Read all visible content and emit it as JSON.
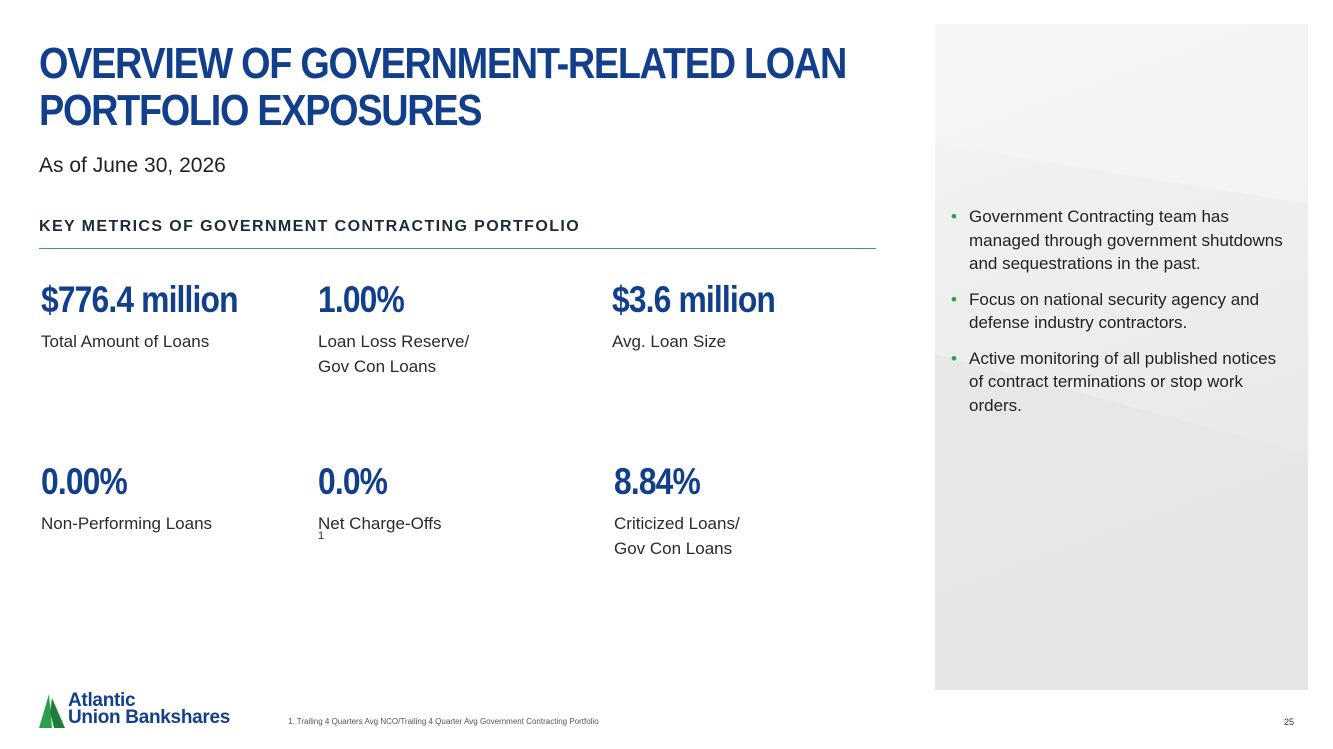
{
  "title": {
    "line1": "OVERVIEW OF GOVERNMENT-RELATED LOAN",
    "line2": "PORTFOLIO EXPOSURES"
  },
  "subtitle": "As of June 30, 2026",
  "section_heading": "KEY METRICS OF GOVERNMENT CONTRACTING PORTFOLIO",
  "metrics": [
    {
      "value": "$776.4 million",
      "label_line1": "Total Amount of Loans",
      "label_line2": ""
    },
    {
      "value": "1.00%",
      "label_line1": "Loan Loss Reserve/",
      "label_line2": "Gov Con Loans"
    },
    {
      "value": "$3.6 million",
      "label_line1": "Avg. Loan Size",
      "label_line2": ""
    },
    {
      "value": "0.00%",
      "label_line1": "Non-Performing Loans",
      "label_line2": ""
    },
    {
      "value": "0.0%",
      "label_line1": "Net Charge-Offs",
      "label_line2": "",
      "footnote_marker": "1"
    },
    {
      "value": "8.84%",
      "label_line1": "Criticized Loans/",
      "label_line2": "Gov Con Loans"
    }
  ],
  "bullets": [
    "Government Contracting team has managed through government shutdowns and sequestrations in the past.",
    "Focus on national security agency and defense industry contractors.",
    "Active monitoring of all published notices of contract terminations or stop work orders."
  ],
  "bullet_symbol": "•",
  "logo": {
    "line1": "Atlantic",
    "line2": "Union Bankshares"
  },
  "footnote": "1. Trailing 4 Quarters Avg NCO/Trailing 4 Quarter Avg Government Contracting Portfolio",
  "page_number": "25",
  "colors": {
    "brand_blue": "#123f8c",
    "accent_green": "#3ba15a",
    "panel_gray": "#ededed"
  }
}
